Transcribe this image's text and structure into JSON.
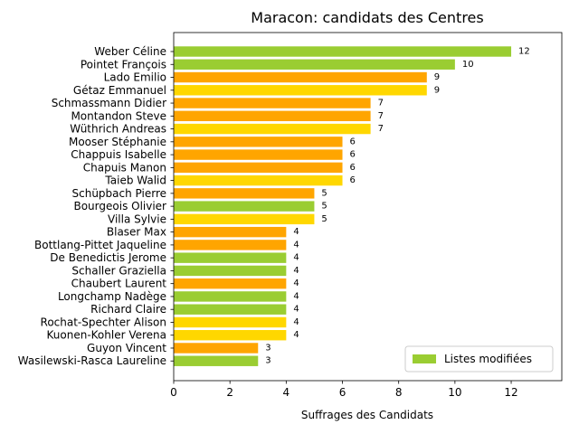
{
  "colors": {
    "green": "#9ACD32",
    "orange": "#FFA500",
    "gold": "#FFD700"
  },
  "chart_data": {
    "type": "bar",
    "orientation": "horizontal",
    "title": "Maracon: candidats des Centres",
    "xlabel": "Suffrages des Candidats",
    "ylabel": "",
    "xlim": [
      0,
      13.8
    ],
    "xticks": [
      0,
      2,
      4,
      6,
      8,
      10,
      12
    ],
    "grid": false,
    "legend": {
      "placement": "bottom-right",
      "entries": [
        {
          "label": "Listes modifiées",
          "color": "green"
        }
      ]
    },
    "categories": [
      "Weber Céline",
      "Pointet François",
      "Lado Emilio",
      "Gétaz Emmanuel",
      "Schmassmann Didier",
      "Montandon Steve",
      "Wüthrich Andreas",
      "Mooser Stéphanie",
      "Chappuis Isabelle",
      "Chapuis Manon",
      "Taieb Walid",
      "Schüpbach Pierre",
      "Bourgeois Olivier",
      "Villa Sylvie",
      "Blaser Max",
      "Bottlang-Pittet Jaqueline",
      "De Benedictis Jerome",
      "Schaller Graziella",
      "Chaubert Laurent",
      "Longchamp Nadège",
      "Richard Claire",
      "Rochat-Spechter Alison",
      "Kuonen-Kohler Verena",
      "Guyon Vincent",
      "Wasilewski-Rasca Laureline"
    ],
    "values": [
      12,
      10,
      9,
      9,
      7,
      7,
      7,
      6,
      6,
      6,
      6,
      5,
      5,
      5,
      4,
      4,
      4,
      4,
      4,
      4,
      4,
      4,
      4,
      3,
      3
    ],
    "bar_colors": [
      "green",
      "green",
      "orange",
      "gold",
      "orange",
      "orange",
      "gold",
      "orange",
      "orange",
      "orange",
      "gold",
      "orange",
      "green",
      "gold",
      "orange",
      "orange",
      "green",
      "green",
      "orange",
      "green",
      "green",
      "gold",
      "gold",
      "orange",
      "green"
    ]
  }
}
